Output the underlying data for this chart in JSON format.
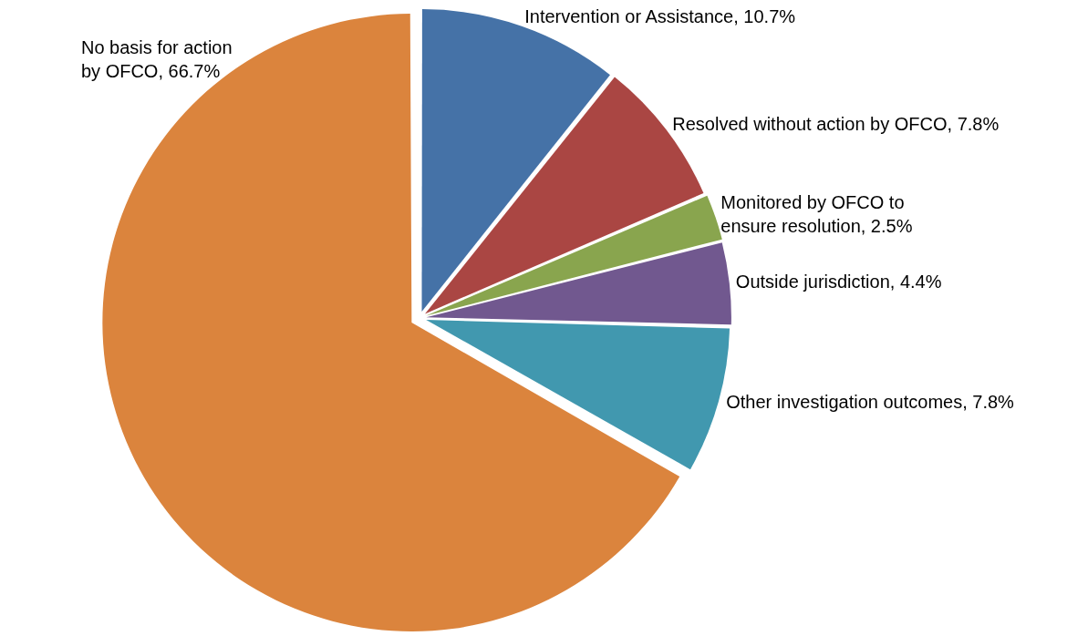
{
  "chart_data": {
    "type": "pie",
    "categories": [
      "Intervention or Assistance",
      "Resolved without action by OFCO",
      "Monitored by OFCO to ensure resolution",
      "Outside jurisdiction",
      "Other investigation outcomes",
      "No basis for action by OFCO"
    ],
    "values": [
      10.7,
      7.8,
      2.5,
      4.4,
      7.8,
      66.7
    ],
    "value_labels": [
      "10.7%",
      "7.8%",
      "2.5%",
      "4.4%",
      "7.8%",
      "66.7%"
    ],
    "colors": [
      "#4572a7",
      "#aa4643",
      "#89a54e",
      "#71588f",
      "#4198af",
      "#db843d"
    ],
    "legend": false
  }
}
